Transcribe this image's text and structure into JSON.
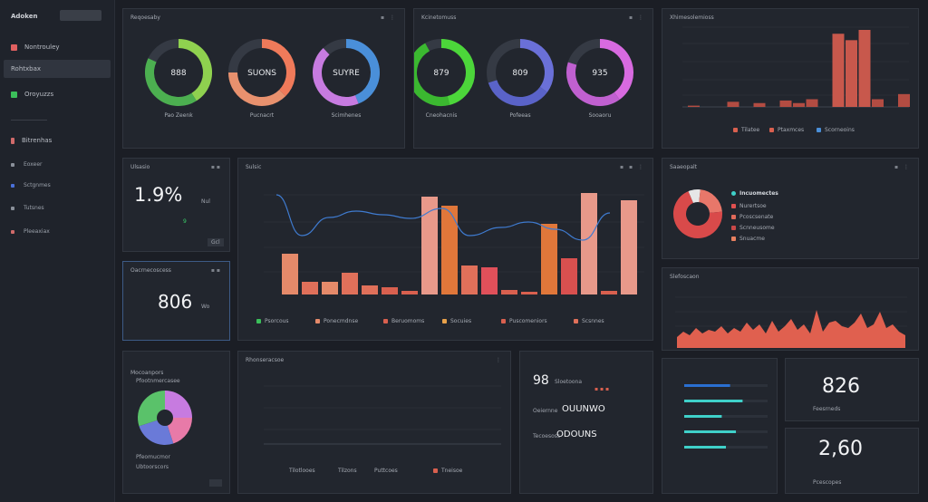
{
  "app": {
    "title": "Adoken",
    "badge": ""
  },
  "sidebar": {
    "items": [
      {
        "label": "Nontrouley",
        "color": "#e06060",
        "active": false
      },
      {
        "label": "Rohtxbax",
        "color": "#4a90d9",
        "active": true
      },
      {
        "label": "Oroyuzzs",
        "color": "#3bbf5a",
        "active": false
      }
    ],
    "section": {
      "label": "Bitrenhas",
      "color": "#d06a6a"
    },
    "sub_items": [
      {
        "label": "Eoxeer"
      },
      {
        "label": "Sctgnmes"
      },
      {
        "label": "Tutsnes"
      },
      {
        "label": "Pleeaxiax"
      }
    ]
  },
  "rings_a": {
    "title": "Reqoesaby",
    "rings": [
      {
        "label": "888",
        "caption": "Pao Zeenk",
        "color": "#8fd14f",
        "color2": "#4caf50",
        "value": 0.82
      },
      {
        "label": "SUONS",
        "caption": "Pucnacrt",
        "color": "#f07a5a",
        "color2": "#e8916e",
        "value": 0.75
      },
      {
        "label": "SUYRE",
        "caption": "Scimhenes",
        "color": "#4a8fd9",
        "color2": "#c77be0",
        "value": 0.88
      }
    ]
  },
  "rings_b": {
    "title": "Kcinetomuss",
    "rings": [
      {
        "label": "879",
        "caption": "Cneohacnis",
        "color": "#4cd63a",
        "color2": "#3bb830",
        "value": 0.92
      },
      {
        "label": "809",
        "caption": "Pofeeas",
        "color": "#6a70d8",
        "color2": "#5a63c8",
        "value": 0.7
      },
      {
        "label": "935",
        "caption": "Sooaoru",
        "color": "#d86ae0",
        "color2": "#c060d0",
        "value": 0.8
      }
    ]
  },
  "top_bars": {
    "title": "Xhimesolemioss",
    "legend": [
      "Tilatee",
      "Ptaxmces",
      "Scorneoins"
    ],
    "colors": {
      "main": "#d9604f",
      "dim": "#b34c42"
    }
  },
  "kpi1": {
    "title": "Ulsasio",
    "value": "1.9%",
    "unit": "Nul",
    "delta": "9",
    "tag": "Gcl"
  },
  "kpi2": {
    "title": "Oacrnecoscess",
    "value": "806",
    "unit": "Wo"
  },
  "main_chart": {
    "title": "Sulsic",
    "legend": [
      "Psorcous",
      "Ponecmdnse",
      "Beruomoms",
      "Socuies",
      "Puscomeniors",
      "Scsnnes"
    ]
  },
  "donut_right": {
    "title": "Saaeopalt",
    "items": [
      "Incuomectes",
      "Nurertsoe",
      "Pcoscsenate",
      "Scnneusome",
      "Snuacme"
    ]
  },
  "pie_card": {
    "title": "Mocoanpors",
    "subtitle": "Pfootnmercasee",
    "legend": [
      "Pfeomucmor",
      "Ubtoorscors"
    ]
  },
  "empty_chart": {
    "title": "Rhonseracsoe",
    "legend": [
      "Tilotlooes",
      "Tilzons",
      "Puttcoes",
      "Tneisoe"
    ]
  },
  "mini_list": {
    "value": "98",
    "rows": [
      {
        "label": "Sloetoona",
        "value": ""
      },
      {
        "label": "Oeiernne",
        "value": "OUUNWO"
      },
      {
        "label": "Tecoesoss",
        "value": "ODOUNS"
      }
    ]
  },
  "area_chart": {
    "title": "Slefoscaon"
  },
  "hbars": {
    "rows": [
      {
        "value": 0.55,
        "color": "#2a6fd1"
      },
      {
        "value": 0.7,
        "color": "#3fd0c9"
      },
      {
        "value": 0.45,
        "color": "#3fd0c9"
      },
      {
        "value": 0.62,
        "color": "#3fd0c9"
      },
      {
        "value": 0.5,
        "color": "#3fd0c9"
      }
    ]
  },
  "kpi3": {
    "value": "826",
    "caption": "Feesrneds"
  },
  "kpi4": {
    "value": "2,60",
    "caption": "Pcescopes"
  }
}
